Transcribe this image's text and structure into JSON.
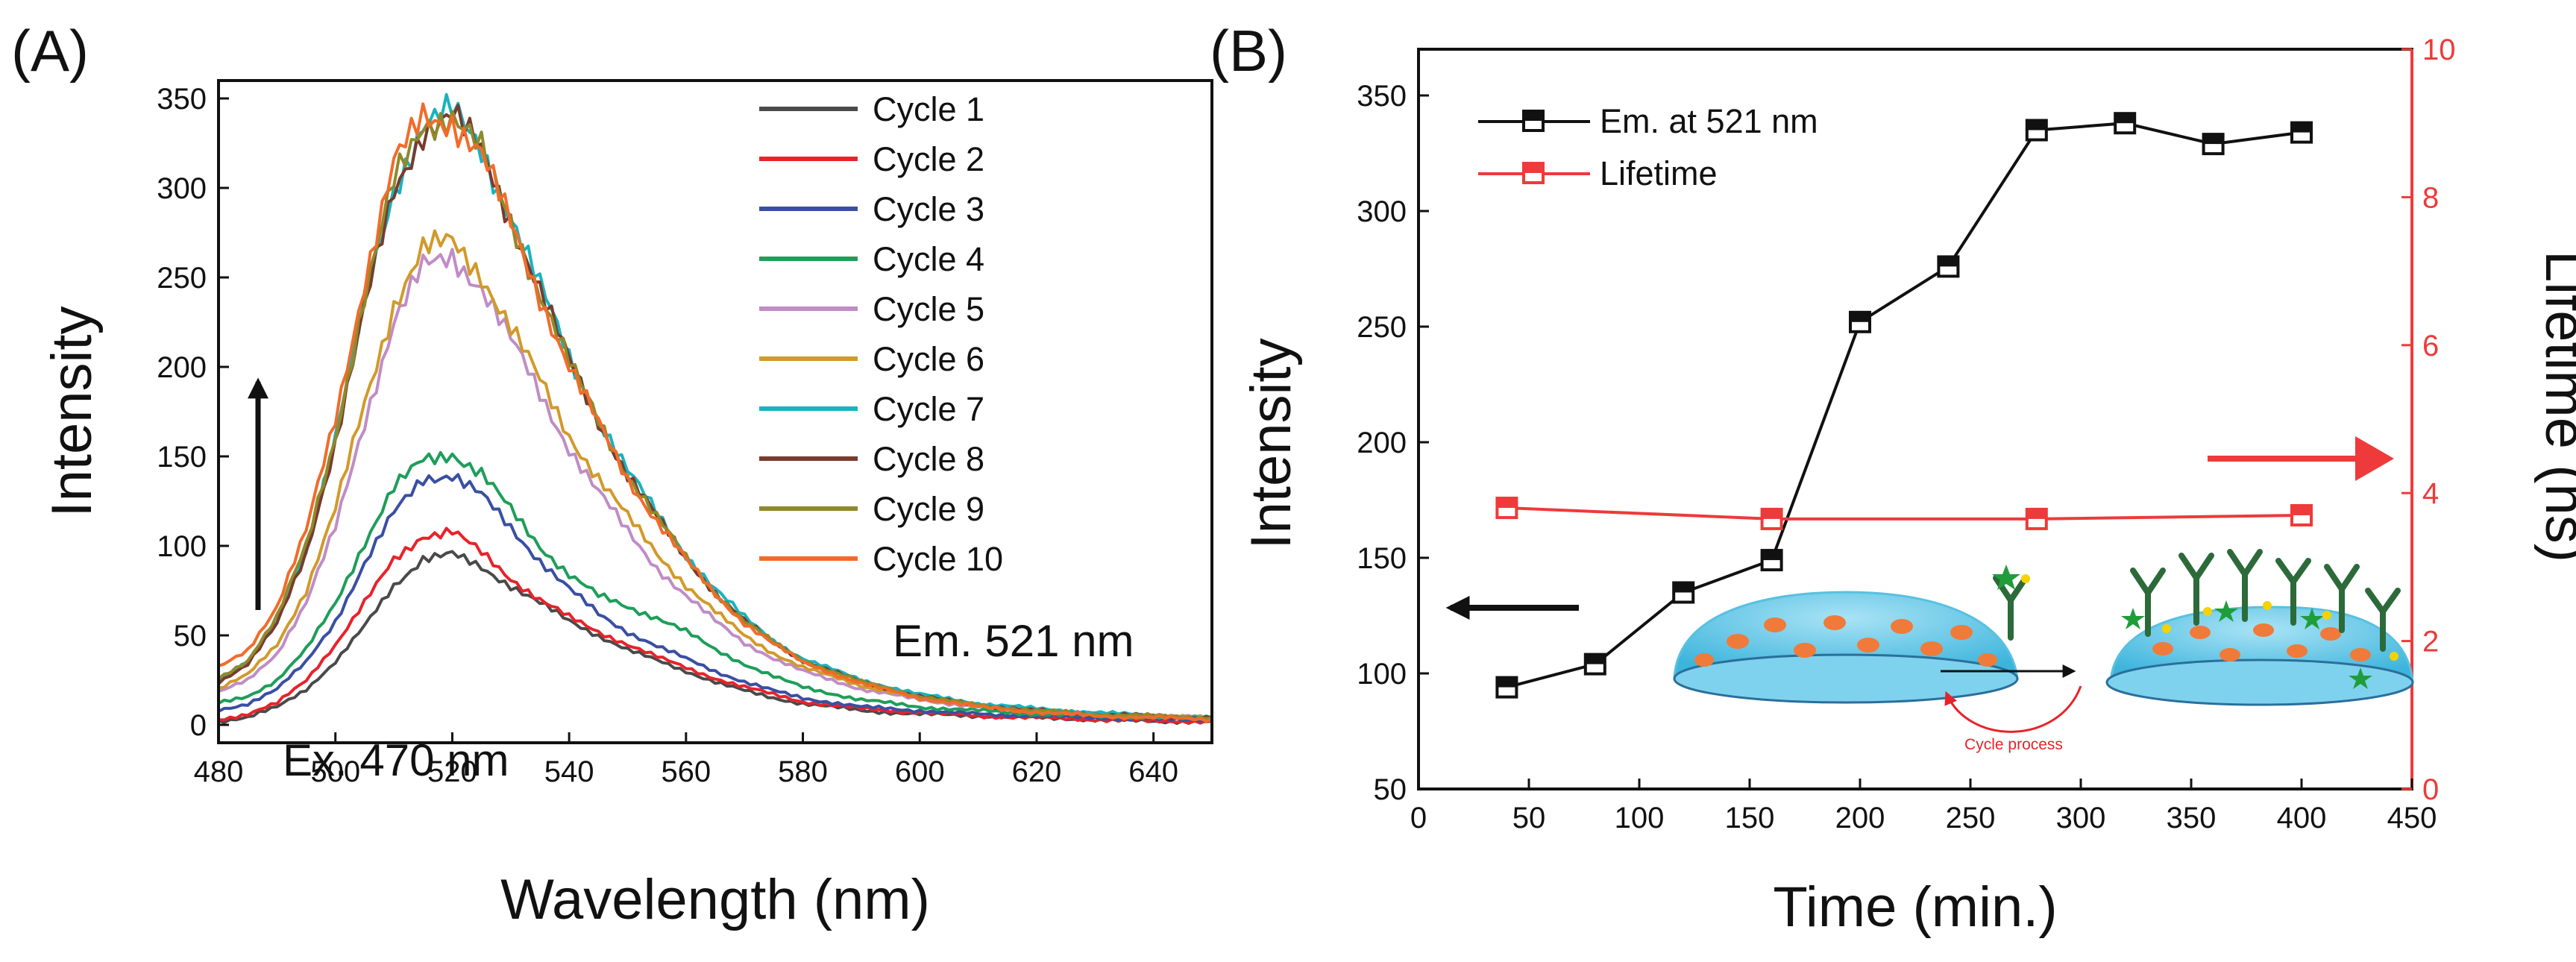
{
  "panel_a_label": "(A)",
  "panel_b_label": "(B)",
  "chart_data": [
    {
      "type": "line",
      "panel": "A",
      "xlabel": "Wavelength (nm)",
      "ylabel": "Intensity",
      "xlim": [
        480,
        650
      ],
      "ylim": [
        -10,
        360
      ],
      "xticks": [
        480,
        500,
        520,
        540,
        560,
        580,
        600,
        620,
        640
      ],
      "yticks": [
        0,
        50,
        100,
        150,
        200,
        250,
        300,
        350
      ],
      "x": [
        480,
        485,
        490,
        495,
        500,
        505,
        510,
        515,
        520,
        525,
        530,
        535,
        540,
        545,
        550,
        555,
        560,
        565,
        570,
        575,
        580,
        590,
        600,
        610,
        620,
        630,
        640,
        650
      ],
      "series": [
        {
          "name": "Cycle 1",
          "color": "#4a4a4a",
          "values": [
            2,
            4,
            10,
            20,
            35,
            55,
            78,
            93,
            95,
            88,
            78,
            68,
            58,
            50,
            42,
            36,
            30,
            24,
            19,
            15,
            12,
            8,
            6,
            5,
            4,
            3,
            2,
            2
          ]
        },
        {
          "name": "Cycle 2",
          "color": "#e8232a",
          "values": [
            3,
            6,
            12,
            25,
            45,
            68,
            92,
            106,
            108,
            96,
            82,
            70,
            60,
            52,
            45,
            38,
            32,
            26,
            21,
            17,
            13,
            9,
            7,
            5,
            4,
            3,
            2,
            2
          ]
        },
        {
          "name": "Cycle 3",
          "color": "#3a4fa3",
          "values": [
            8,
            12,
            20,
            35,
            58,
            90,
            118,
            138,
            140,
            128,
            110,
            92,
            76,
            62,
            52,
            44,
            37,
            30,
            24,
            19,
            15,
            10,
            8,
            6,
            5,
            4,
            3,
            3
          ]
        },
        {
          "name": "Cycle 4",
          "color": "#1e9e5a",
          "values": [
            12,
            16,
            25,
            42,
            68,
            102,
            132,
            148,
            152,
            140,
            120,
            100,
            84,
            72,
            66,
            60,
            52,
            42,
            34,
            27,
            21,
            14,
            10,
            8,
            6,
            5,
            4,
            3
          ]
        },
        {
          "name": "Cycle 5",
          "color": "#c08cc6",
          "values": [
            18,
            25,
            40,
            68,
            110,
            170,
            225,
            255,
            262,
            245,
            215,
            185,
            155,
            130,
            108,
            88,
            72,
            58,
            46,
            37,
            30,
            20,
            14,
            10,
            8,
            6,
            5,
            4
          ]
        },
        {
          "name": "Cycle 6",
          "color": "#d19a2a",
          "values": [
            20,
            28,
            45,
            75,
            120,
            180,
            235,
            265,
            270,
            252,
            222,
            192,
            162,
            138,
            116,
            96,
            78,
            63,
            50,
            40,
            32,
            22,
            15,
            11,
            8,
            6,
            5,
            4
          ]
        },
        {
          "name": "Cycle 7",
          "color": "#17b4bf",
          "values": [
            25,
            35,
            58,
            98,
            160,
            235,
            300,
            335,
            342,
            322,
            285,
            245,
            205,
            172,
            142,
            118,
            95,
            76,
            60,
            47,
            37,
            25,
            17,
            12,
            9,
            7,
            5,
            4
          ]
        },
        {
          "name": "Cycle 8",
          "color": "#7a3b2e",
          "values": [
            24,
            34,
            56,
            96,
            158,
            232,
            298,
            333,
            340,
            320,
            283,
            243,
            203,
            170,
            140,
            116,
            93,
            74,
            58,
            46,
            36,
            24,
            16,
            11,
            8,
            6,
            5,
            4
          ]
        },
        {
          "name": "Cycle 9",
          "color": "#8f8a2a",
          "values": [
            26,
            36,
            60,
            100,
            162,
            238,
            303,
            337,
            340,
            320,
            282,
            242,
            202,
            170,
            140,
            116,
            93,
            74,
            58,
            46,
            36,
            24,
            16,
            11,
            8,
            6,
            5,
            4
          ]
        },
        {
          "name": "Cycle 10",
          "color": "#f26b2b",
          "values": [
            32,
            42,
            66,
            108,
            172,
            248,
            312,
            340,
            338,
            318,
            280,
            240,
            200,
            168,
            138,
            114,
            92,
            73,
            57,
            45,
            35,
            23,
            15,
            10,
            7,
            5,
            4,
            3
          ]
        }
      ],
      "annotations": {
        "emission": "Em. 521 nm",
        "excitation": "Ex. 470 nm"
      },
      "legend_position": "top-right"
    },
    {
      "type": "line",
      "panel": "B",
      "xlabel": "Time (min.)",
      "ylabel": "Intensity",
      "y2label": "Lifetime (ns)",
      "xlim": [
        0,
        450
      ],
      "ylim": [
        50,
        370
      ],
      "y2lim": [
        0,
        10
      ],
      "xticks": [
        0,
        50,
        100,
        150,
        200,
        250,
        300,
        350,
        400,
        450
      ],
      "yticks": [
        50,
        100,
        150,
        200,
        250,
        300,
        350
      ],
      "y2ticks": [
        0,
        2,
        4,
        6,
        8,
        10
      ],
      "series": [
        {
          "name": "Em. at 521 nm",
          "axis": "left",
          "color": "#111111",
          "x": [
            40,
            80,
            120,
            160,
            200,
            240,
            280,
            320,
            360,
            400
          ],
          "values": [
            94,
            104,
            135,
            149,
            252,
            276,
            335,
            338,
            329,
            334
          ]
        },
        {
          "name": "Lifetime",
          "axis": "right",
          "color": "#ee3a3a",
          "x": [
            40,
            160,
            280,
            400
          ],
          "values": [
            3.8,
            3.65,
            3.65,
            3.7
          ]
        }
      ],
      "inset_caption": "Cycle process",
      "legend_position": "top-left"
    }
  ],
  "colors": {
    "axis": "#111111",
    "right_axis": "#ee3a3a"
  }
}
